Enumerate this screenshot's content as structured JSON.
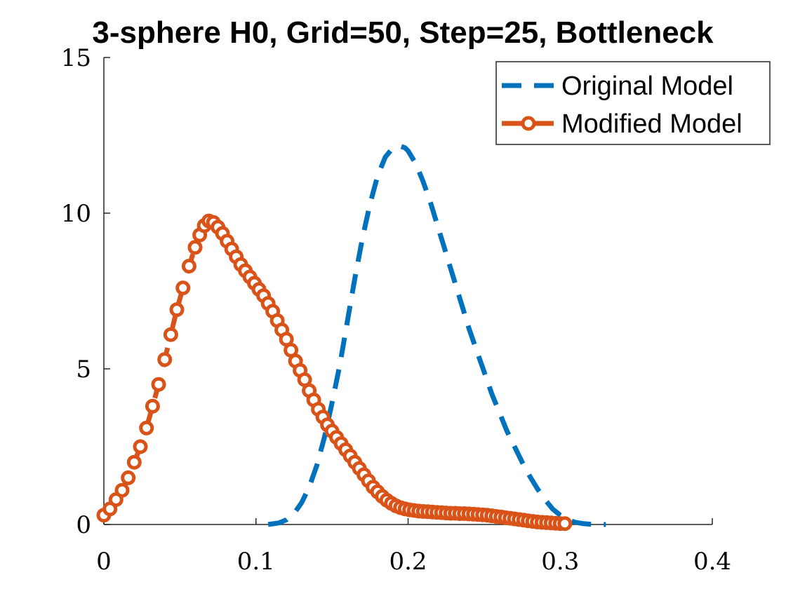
{
  "chart_data": {
    "type": "line",
    "title": "3-sphere H0, Grid=50, Step=25, Bottleneck",
    "xlabel": "",
    "ylabel": "",
    "xlim": [
      0,
      0.4
    ],
    "ylim": [
      0,
      15
    ],
    "xticks": [
      "0",
      "0.1",
      "0.2",
      "0.3",
      "0.4"
    ],
    "yticks": [
      "0",
      "5",
      "10",
      "15"
    ],
    "grid": false,
    "legend_position": "top-right",
    "series": [
      {
        "name": "Original Model",
        "color": "#0072BD",
        "line_style": "dashed",
        "marker": "none",
        "x": [
          0.108,
          0.115,
          0.12,
          0.125,
          0.13,
          0.135,
          0.14,
          0.145,
          0.15,
          0.155,
          0.16,
          0.165,
          0.17,
          0.175,
          0.18,
          0.185,
          0.19,
          0.195,
          0.198,
          0.2,
          0.205,
          0.21,
          0.215,
          0.22,
          0.225,
          0.23,
          0.235,
          0.24,
          0.245,
          0.25,
          0.255,
          0.26,
          0.265,
          0.27,
          0.275,
          0.28,
          0.285,
          0.29,
          0.295,
          0.3,
          0.305,
          0.31,
          0.315,
          0.32,
          0.325,
          0.33
        ],
        "y": [
          0.0,
          0.05,
          0.15,
          0.35,
          0.7,
          1.2,
          1.9,
          2.8,
          3.9,
          5.1,
          6.5,
          7.9,
          9.2,
          10.3,
          11.2,
          11.8,
          12.1,
          12.15,
          12.1,
          12.0,
          11.6,
          11.0,
          10.3,
          9.5,
          8.7,
          7.9,
          7.1,
          6.3,
          5.6,
          4.9,
          4.2,
          3.6,
          3.0,
          2.5,
          2.0,
          1.55,
          1.15,
          0.8,
          0.5,
          0.3,
          0.15,
          0.07,
          0.03,
          0.01,
          0.0,
          0.0
        ]
      },
      {
        "name": "Modified Model",
        "color": "#D95319",
        "line_style": "dashed",
        "marker": "circle",
        "x": [
          0.0,
          0.004,
          0.008,
          0.012,
          0.016,
          0.02,
          0.024,
          0.028,
          0.032,
          0.036,
          0.04,
          0.044,
          0.048,
          0.052,
          0.056,
          0.06,
          0.063,
          0.066,
          0.069,
          0.072,
          0.075,
          0.078,
          0.081,
          0.084,
          0.087,
          0.09,
          0.093,
          0.096,
          0.099,
          0.102,
          0.105,
          0.108,
          0.111,
          0.114,
          0.117,
          0.12,
          0.123,
          0.126,
          0.129,
          0.132,
          0.135,
          0.138,
          0.141,
          0.144,
          0.147,
          0.15,
          0.153,
          0.156,
          0.159,
          0.162,
          0.165,
          0.168,
          0.171,
          0.174,
          0.177,
          0.18,
          0.183,
          0.186,
          0.189,
          0.192,
          0.195,
          0.198,
          0.201,
          0.204,
          0.207,
          0.21,
          0.213,
          0.216,
          0.219,
          0.222,
          0.225,
          0.228,
          0.231,
          0.234,
          0.237,
          0.24,
          0.243,
          0.246,
          0.249,
          0.252,
          0.255,
          0.258,
          0.261,
          0.264,
          0.267,
          0.27,
          0.273,
          0.276,
          0.279,
          0.282,
          0.285,
          0.288,
          0.291,
          0.294,
          0.297,
          0.3,
          0.303
        ],
        "y": [
          0.3,
          0.5,
          0.8,
          1.1,
          1.5,
          2.0,
          2.5,
          3.1,
          3.8,
          4.5,
          5.3,
          6.1,
          6.9,
          7.6,
          8.3,
          8.9,
          9.3,
          9.6,
          9.75,
          9.7,
          9.55,
          9.35,
          9.1,
          8.85,
          8.6,
          8.35,
          8.15,
          7.95,
          7.75,
          7.55,
          7.35,
          7.1,
          6.85,
          6.55,
          6.25,
          5.95,
          5.6,
          5.25,
          4.95,
          4.65,
          4.3,
          4.0,
          3.7,
          3.45,
          3.2,
          3.0,
          2.8,
          2.6,
          2.4,
          2.2,
          2.0,
          1.8,
          1.6,
          1.4,
          1.2,
          1.05,
          0.9,
          0.78,
          0.68,
          0.6,
          0.54,
          0.5,
          0.47,
          0.45,
          0.43,
          0.42,
          0.41,
          0.4,
          0.39,
          0.38,
          0.37,
          0.36,
          0.36,
          0.35,
          0.35,
          0.34,
          0.33,
          0.32,
          0.31,
          0.3,
          0.28,
          0.26,
          0.24,
          0.22,
          0.2,
          0.18,
          0.16,
          0.14,
          0.12,
          0.1,
          0.08,
          0.07,
          0.06,
          0.05,
          0.04,
          0.03,
          0.03
        ]
      }
    ]
  }
}
